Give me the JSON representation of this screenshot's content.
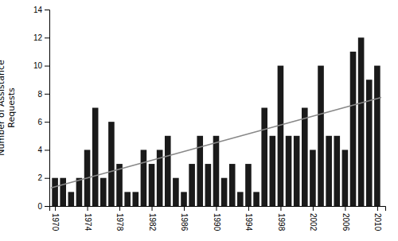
{
  "chart_data": {
    "type": "bar",
    "ylabel": "Number of Assistance\nRequests",
    "x": [
      1970,
      1971,
      1972,
      1973,
      1974,
      1975,
      1976,
      1977,
      1978,
      1979,
      1980,
      1981,
      1982,
      1983,
      1984,
      1985,
      1986,
      1987,
      1988,
      1989,
      1990,
      1991,
      1992,
      1993,
      1994,
      1995,
      1996,
      1997,
      1998,
      1999,
      2000,
      2001,
      2002,
      2003,
      2004,
      2005,
      2006,
      2007,
      2008,
      2009,
      2010
    ],
    "xlim": [
      1969.3,
      2011.0
    ],
    "xticks": [
      1970,
      1974,
      1978,
      1982,
      1986,
      1990,
      1994,
      1998,
      2002,
      2006,
      2010
    ],
    "ylim": [
      0,
      14
    ],
    "yticks": [
      0,
      2,
      4,
      6,
      8,
      10,
      12,
      14
    ],
    "series": [
      {
        "type": "bar",
        "color": "#1a1a1a",
        "values": [
          2,
          2,
          1,
          2,
          4,
          7,
          2,
          6,
          3,
          1,
          1,
          4,
          3,
          4,
          5,
          2,
          1,
          3,
          5,
          3,
          5,
          2,
          3,
          1,
          3,
          1,
          7,
          5,
          10,
          5,
          5,
          7,
          4,
          10,
          5,
          5,
          4,
          11,
          12,
          9,
          10
        ]
      },
      {
        "type": "line",
        "color": "#888888",
        "x": [
          1969.5,
          2010.5
        ],
        "values": [
          1.290766551,
          7.733623693
        ]
      }
    ]
  }
}
